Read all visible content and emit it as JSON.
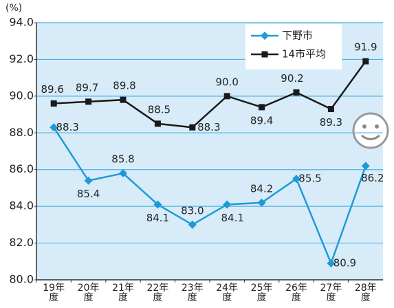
{
  "chart_data": {
    "type": "line",
    "y_label": "(%)",
    "categories": [
      "19年度",
      "20年度",
      "21年度",
      "22年度",
      "23年度",
      "24年度",
      "25年度",
      "26年度",
      "27年度",
      "28年度"
    ],
    "series": [
      {
        "name": "下野市",
        "color": "#1e9ad8",
        "marker": "diamond",
        "values": [
          88.3,
          85.4,
          85.8,
          84.1,
          83.0,
          84.1,
          84.2,
          85.5,
          80.9,
          86.2
        ],
        "value_labels": [
          "88.3",
          "85.4",
          "85.8",
          "84.1",
          "83.0",
          "84.1",
          "84.2",
          "85.5",
          "80.9",
          "86.2"
        ]
      },
      {
        "name": "14市平均",
        "color": "#1a1a1a",
        "marker": "square",
        "values": [
          89.6,
          89.7,
          89.8,
          88.5,
          88.3,
          90.0,
          89.4,
          90.2,
          89.3,
          91.9
        ],
        "value_labels": [
          "89.6",
          "89.7",
          "89.8",
          "88.5",
          "88.3",
          "90.0",
          "89.4",
          "90.2",
          "89.3",
          "91.9"
        ]
      }
    ],
    "ylim": [
      80,
      94
    ],
    "yticks": [
      {
        "value": 80,
        "label": "80.0"
      },
      {
        "value": 82,
        "label": "82.0"
      },
      {
        "value": 84,
        "label": "84.0"
      },
      {
        "value": 86,
        "label": "86.0"
      },
      {
        "value": 88,
        "label": "88.0"
      },
      {
        "value": 90,
        "label": "90.0"
      },
      {
        "value": 92,
        "label": "92.0"
      },
      {
        "value": 94,
        "label": "94.0"
      }
    ],
    "grid": true,
    "legend": "upper right"
  }
}
